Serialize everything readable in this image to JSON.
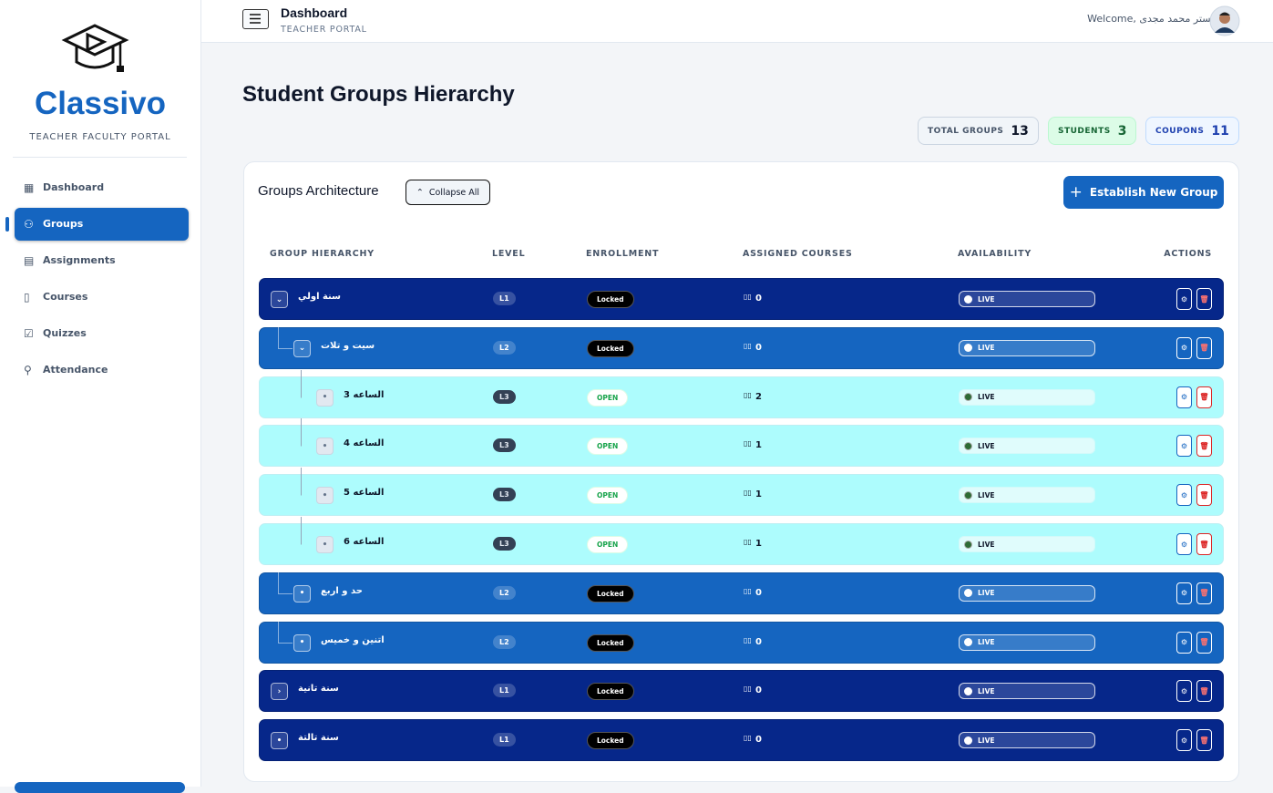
{
  "sidebar": {
    "brand": "Classivo",
    "subtitle": "TEACHER FACULTY PORTAL",
    "nav": [
      "Dashboard",
      "Groups",
      "Assignments",
      "Courses",
      "Quizzes",
      "Attendance"
    ],
    "active": 1
  },
  "header": {
    "title": "Dashboard",
    "subtitle": "TEACHER PORTAL",
    "welcome": "Welcome, مستر محمد مجدى"
  },
  "page": {
    "title": "Student Groups Hierarchy",
    "stats": [
      {
        "label": "TOTAL GROUPS",
        "value": 13
      },
      {
        "label": "STUDENTS",
        "value": 3
      },
      {
        "label": "COUPONS",
        "value": 11
      }
    ]
  },
  "panel": {
    "title": "Groups Architecture",
    "collapse": "Collapse All",
    "create": "Establish New Group",
    "columns": [
      "GROUP HIERARCHY",
      "LEVEL",
      "ENROLLMENT",
      "ASSIGNED COURSES",
      "AVAILABILITY",
      "ACTIONS"
    ],
    "rows": [
      {
        "name": "سنة اولي",
        "level": "L1",
        "enrollment": "Locked",
        "courses": 0,
        "availability": "LIVE",
        "toggle": "expanded"
      },
      {
        "name": "سيت و تلات",
        "level": "L2",
        "enrollment": "Locked",
        "courses": 0,
        "availability": "LIVE",
        "toggle": "expanded"
      },
      {
        "name": "الساعه 3",
        "level": "L3",
        "enrollment": "OPEN",
        "courses": 2,
        "availability": "LIVE",
        "toggle": "leaf"
      },
      {
        "name": "الساعه 4",
        "level": "L3",
        "enrollment": "OPEN",
        "courses": 1,
        "availability": "LIVE",
        "toggle": "leaf"
      },
      {
        "name": "الساعه 5",
        "level": "L3",
        "enrollment": "OPEN",
        "courses": 1,
        "availability": "LIVE",
        "toggle": "leaf"
      },
      {
        "name": "الساعه 6",
        "level": "L3",
        "enrollment": "OPEN",
        "courses": 1,
        "availability": "LIVE",
        "toggle": "leaf"
      },
      {
        "name": "حد و اربع",
        "level": "L2",
        "enrollment": "Locked",
        "courses": 0,
        "availability": "LIVE",
        "toggle": "leaf"
      },
      {
        "name": "اتنين و خميس",
        "level": "L2",
        "enrollment": "Locked",
        "courses": 0,
        "availability": "LIVE",
        "toggle": "leaf"
      },
      {
        "name": "سنة تانية",
        "level": "L1",
        "enrollment": "Locked",
        "courses": 0,
        "availability": "LIVE",
        "toggle": "collapsed"
      },
      {
        "name": "سنة تالتة",
        "level": "L1",
        "enrollment": "Locked",
        "courses": 0,
        "availability": "LIVE",
        "toggle": "leaf"
      }
    ]
  }
}
